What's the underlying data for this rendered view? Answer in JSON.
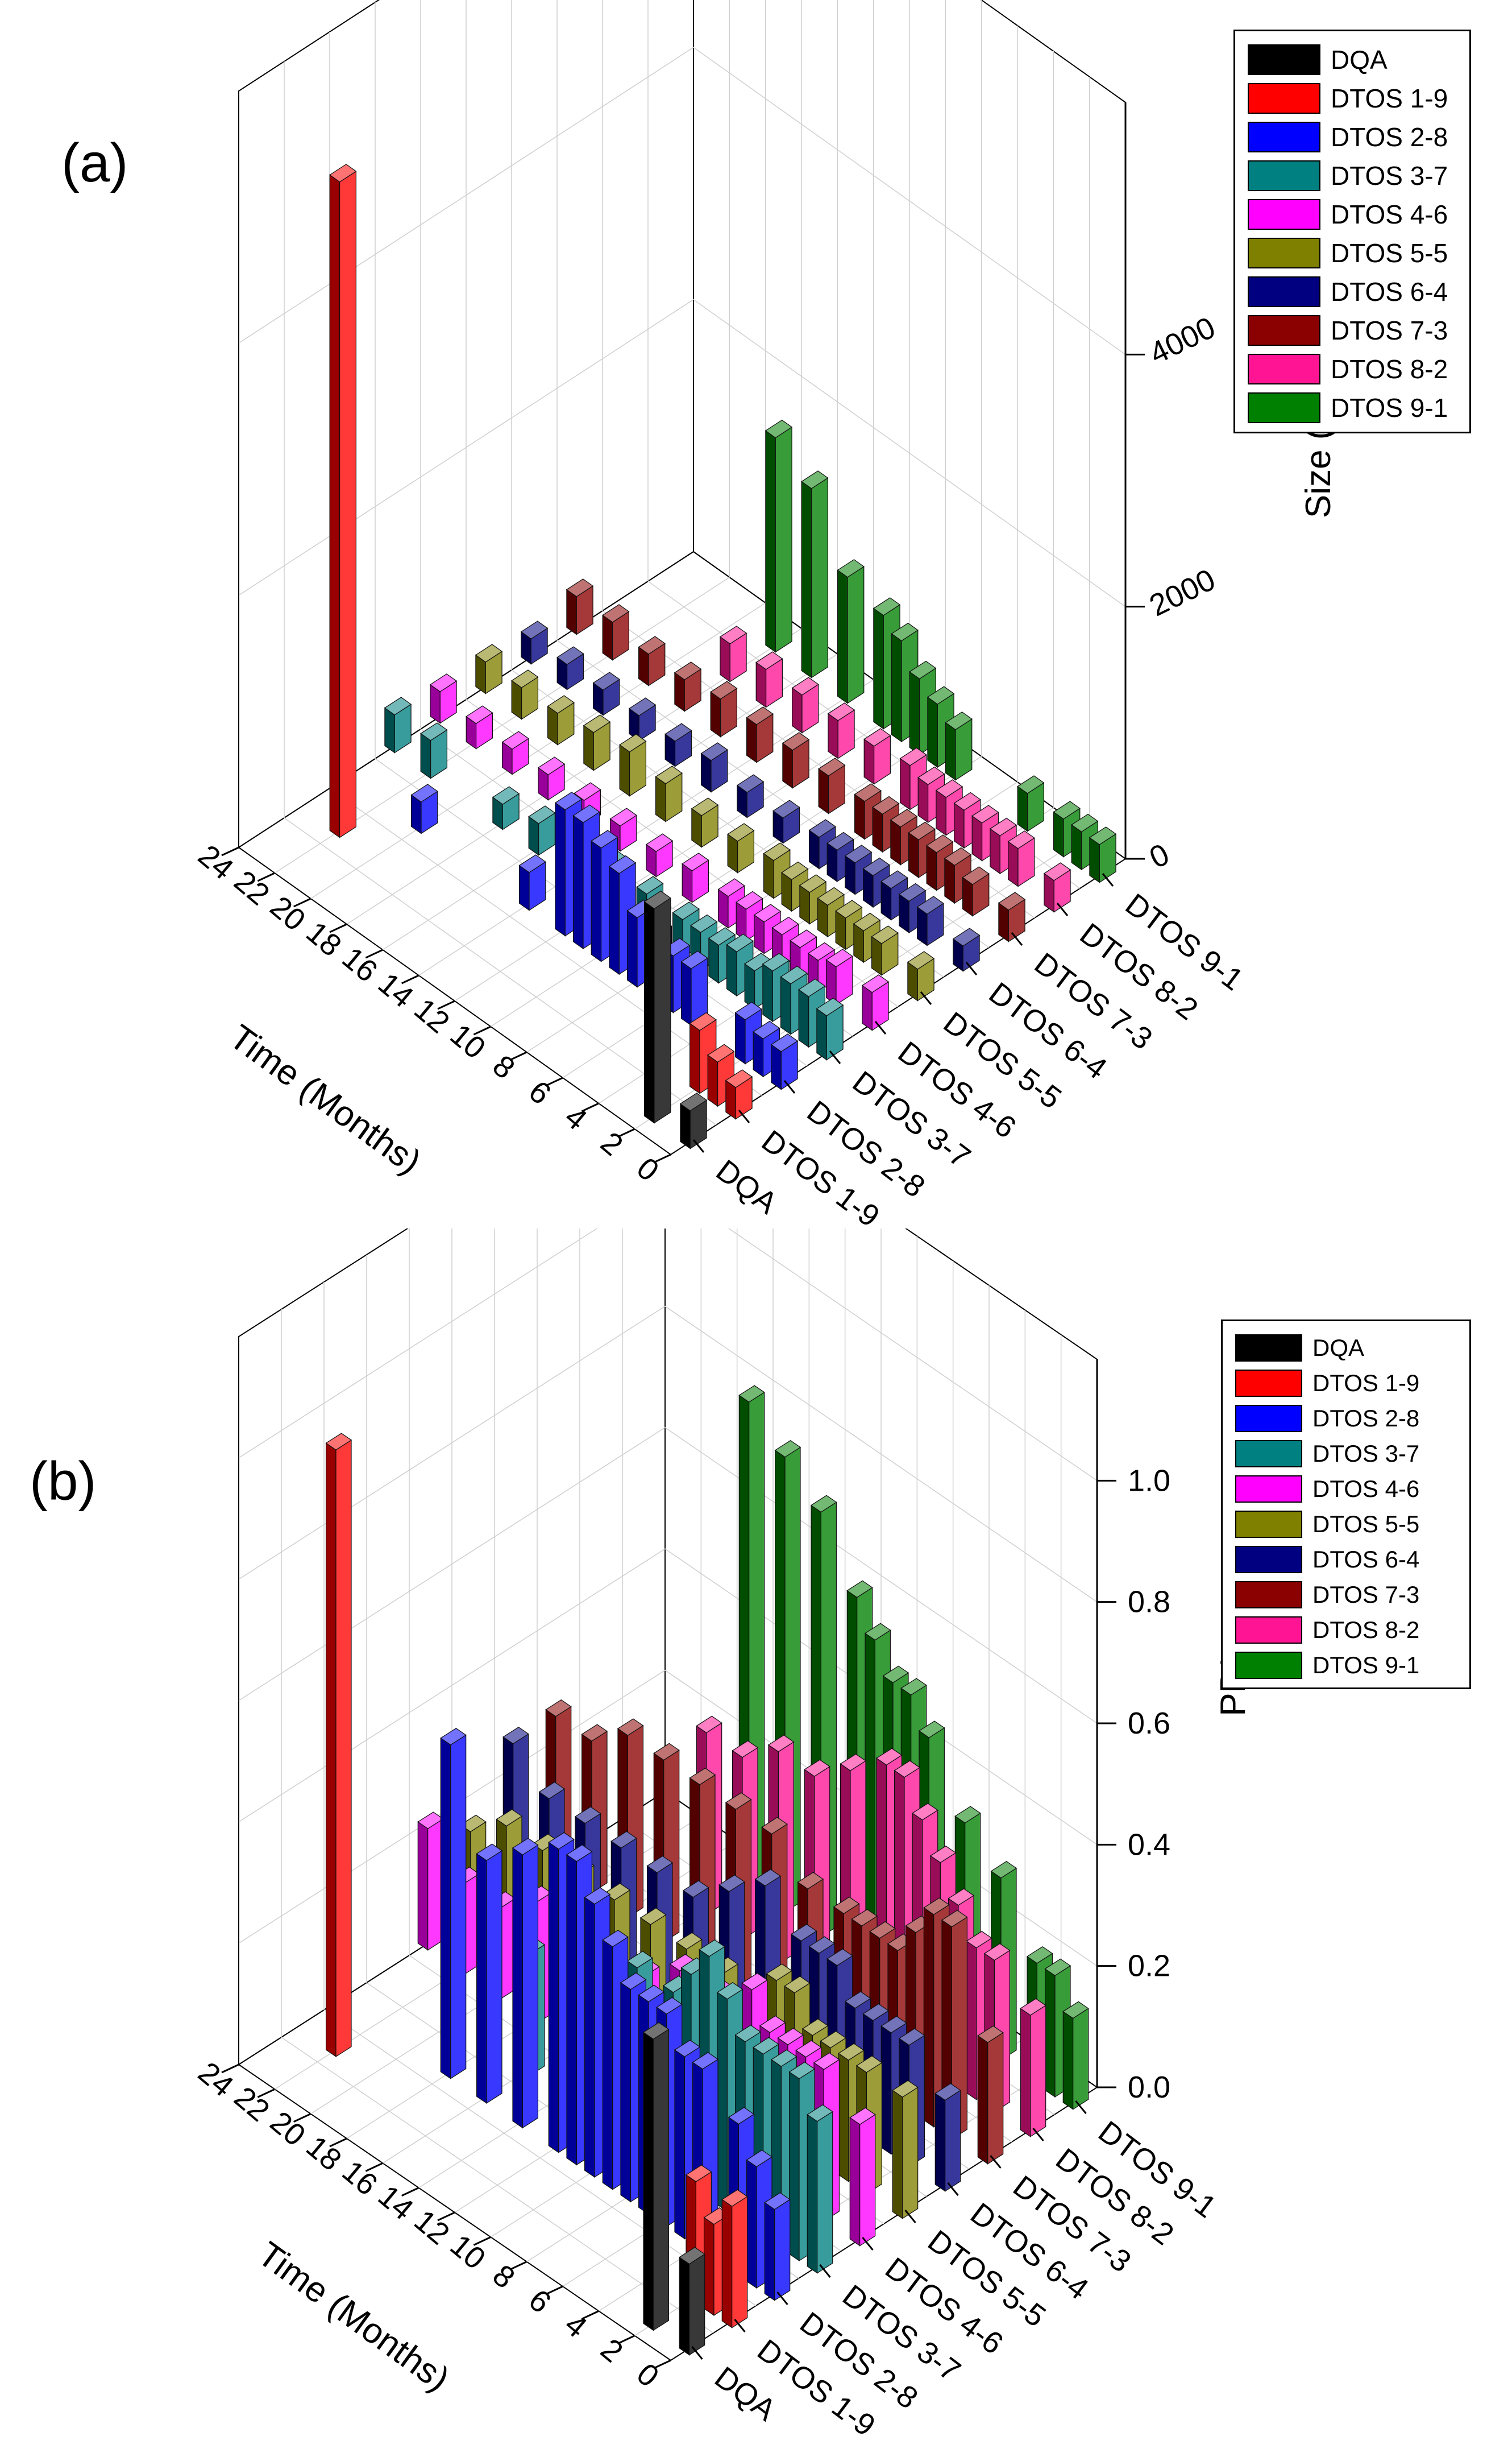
{
  "chart_data": [
    {
      "panel_label": "(a)",
      "type": "bar3d",
      "title": "",
      "xlabel": "",
      "ylabel": "Time (Months)",
      "zlabel": "Size (nm)",
      "categories": [
        "DQA",
        "DTOS 1-9",
        "DTOS 2-8",
        "DTOS 3-7",
        "DTOS 4-6",
        "DTOS 5-5",
        "DTOS 6-4",
        "DTOS 7-3",
        "DTOS 8-2",
        "DTOS 9-1"
      ],
      "time_ticks": [
        "0",
        "2",
        "4",
        "6",
        "8",
        "10",
        "12",
        "14",
        "16",
        "18",
        "20",
        "22",
        "24"
      ],
      "z_ticks": [
        "0",
        "2000",
        "4000"
      ],
      "zlim": [
        0,
        6000
      ],
      "series": [
        {
          "name": "DQA",
          "color": "#000000",
          "values": [
            [
              0,
              300
            ],
            [
              2,
              1700
            ]
          ]
        },
        {
          "name": "DTOS 1-9",
          "color": "#ff0000",
          "values": [
            [
              0,
              250
            ],
            [
              1,
              350
            ],
            [
              2,
              500
            ],
            [
              22,
              5200
            ]
          ]
        },
        {
          "name": "DTOS 2-8",
          "color": "#0000ff",
          "values": [
            [
              0,
              300
            ],
            [
              1,
              300
            ],
            [
              2,
              350
            ],
            [
              5,
              450
            ],
            [
              6,
              450
            ],
            [
              7,
              500
            ],
            [
              8,
              550
            ],
            [
              9,
              800
            ],
            [
              10,
              900
            ],
            [
              11,
              1000
            ],
            [
              12,
              1000
            ],
            [
              14,
              300
            ],
            [
              20,
              250
            ]
          ]
        },
        {
          "name": "DTOS 3-7",
          "color": "#008080",
          "values": [
            [
              0,
              350
            ],
            [
              1,
              400
            ],
            [
              2,
              400
            ],
            [
              3,
              400
            ],
            [
              4,
              300
            ],
            [
              5,
              350
            ],
            [
              6,
              300
            ],
            [
              7,
              300
            ],
            [
              8,
              300
            ],
            [
              10,
              300
            ],
            [
              12,
              300
            ],
            [
              14,
              250
            ],
            [
              16,
              250
            ],
            [
              18,
              200
            ],
            [
              22,
              300
            ],
            [
              24,
              300
            ]
          ]
        },
        {
          "name": "DTOS 4-6",
          "color": "#ff00ff",
          "values": [
            [
              0,
              300
            ],
            [
              2,
              300
            ],
            [
              3,
              250
            ],
            [
              4,
              250
            ],
            [
              5,
              250
            ],
            [
              6,
              250
            ],
            [
              7,
              250
            ],
            [
              8,
              250
            ],
            [
              10,
              250
            ],
            [
              12,
              200
            ],
            [
              14,
              200
            ],
            [
              16,
              200
            ],
            [
              18,
              200
            ],
            [
              20,
              200
            ],
            [
              22,
              200
            ],
            [
              24,
              250
            ]
          ]
        },
        {
          "name": "DTOS 5-5",
          "color": "#808000",
          "values": [
            [
              0,
              250
            ],
            [
              2,
              250
            ],
            [
              3,
              250
            ],
            [
              4,
              250
            ],
            [
              5,
              250
            ],
            [
              6,
              250
            ],
            [
              7,
              250
            ],
            [
              8,
              300
            ],
            [
              10,
              250
            ],
            [
              12,
              250
            ],
            [
              14,
              300
            ],
            [
              16,
              350
            ],
            [
              18,
              300
            ],
            [
              20,
              250
            ],
            [
              22,
              250
            ],
            [
              24,
              250
            ]
          ]
        },
        {
          "name": "DTOS 6-4",
          "color": "#000080",
          "values": [
            [
              0,
              200
            ],
            [
              2,
              250
            ],
            [
              3,
              250
            ],
            [
              4,
              250
            ],
            [
              5,
              250
            ],
            [
              6,
              250
            ],
            [
              7,
              250
            ],
            [
              8,
              250
            ],
            [
              10,
              200
            ],
            [
              12,
              200
            ],
            [
              14,
              250
            ],
            [
              16,
              200
            ],
            [
              18,
              200
            ],
            [
              20,
              200
            ],
            [
              22,
              200
            ],
            [
              24,
              200
            ]
          ]
        },
        {
          "name": "DTOS 7-3",
          "color": "#8b0000",
          "values": [
            [
              0,
              250
            ],
            [
              2,
              250
            ],
            [
              3,
              300
            ],
            [
              4,
              300
            ],
            [
              5,
              300
            ],
            [
              6,
              300
            ],
            [
              7,
              300
            ],
            [
              8,
              300
            ],
            [
              10,
              300
            ],
            [
              12,
              300
            ],
            [
              14,
              300
            ],
            [
              16,
              300
            ],
            [
              18,
              250
            ],
            [
              20,
              250
            ],
            [
              22,
              300
            ],
            [
              24,
              300
            ]
          ]
        },
        {
          "name": "DTOS 8-2",
          "color": "#ff1493",
          "values": [
            [
              0,
              250
            ],
            [
              2,
              300
            ],
            [
              3,
              300
            ],
            [
              4,
              300
            ],
            [
              5,
              300
            ],
            [
              6,
              300
            ],
            [
              7,
              300
            ],
            [
              8,
              350
            ],
            [
              10,
              300
            ],
            [
              12,
              300
            ],
            [
              14,
              300
            ],
            [
              16,
              300
            ],
            [
              18,
              300
            ]
          ]
        },
        {
          "name": "DTOS 9-1",
          "color": "#008000",
          "values": [
            [
              0,
              300
            ],
            [
              1,
              300
            ],
            [
              2,
              300
            ],
            [
              4,
              300
            ],
            [
              8,
              400
            ],
            [
              9,
              500
            ],
            [
              10,
              600
            ],
            [
              11,
              800
            ],
            [
              12,
              900
            ],
            [
              14,
              1000
            ],
            [
              16,
              1500
            ],
            [
              18,
              1700
            ]
          ]
        }
      ]
    },
    {
      "panel_label": "(b)",
      "type": "bar3d",
      "title": "",
      "xlabel": "",
      "ylabel": "Time (Months)",
      "zlabel": "PDI",
      "categories": [
        "DQA",
        "DTOS 1-9",
        "DTOS 2-8",
        "DTOS 3-7",
        "DTOS 4-6",
        "DTOS 5-5",
        "DTOS 6-4",
        "DTOS 7-3",
        "DTOS 8-2",
        "DTOS 9-1"
      ],
      "time_ticks": [
        "0",
        "2",
        "4",
        "6",
        "8",
        "10",
        "12",
        "14",
        "16",
        "18",
        "20",
        "22",
        "24"
      ],
      "z_ticks": [
        "0.0",
        "0.2",
        "0.4",
        "0.6",
        "0.8",
        "1.0"
      ],
      "zlim": [
        0,
        1.2
      ],
      "series": [
        {
          "name": "DQA",
          "color": "#000000",
          "values": [
            [
              0,
              0.15
            ],
            [
              2,
              0.48
            ]
          ]
        },
        {
          "name": "DTOS 1-9",
          "color": "#ff0000",
          "values": [
            [
              0,
              0.2
            ],
            [
              1,
              0.15
            ],
            [
              2,
              0.2
            ],
            [
              22,
              1.0
            ]
          ]
        },
        {
          "name": "DTOS 2-8",
          "color": "#0000ff",
          "values": [
            [
              0,
              0.15
            ],
            [
              1,
              0.2
            ],
            [
              2,
              0.25
            ],
            [
              4,
              0.3
            ],
            [
              5,
              0.3
            ],
            [
              6,
              0.35
            ],
            [
              7,
              0.35
            ],
            [
              8,
              0.35
            ],
            [
              9,
              0.4
            ],
            [
              10,
              0.45
            ],
            [
              11,
              0.5
            ],
            [
              12,
              0.5
            ],
            [
              14,
              0.45
            ],
            [
              16,
              0.4
            ],
            [
              18,
              0.55
            ]
          ]
        },
        {
          "name": "DTOS 3-7",
          "color": "#008080",
          "values": [
            [
              0,
              0.25
            ],
            [
              1,
              0.3
            ],
            [
              2,
              0.3
            ],
            [
              3,
              0.3
            ],
            [
              4,
              0.3
            ],
            [
              5,
              0.35
            ],
            [
              6,
              0.4
            ],
            [
              7,
              0.35
            ],
            [
              8,
              0.3
            ],
            [
              10,
              0.3
            ],
            [
              12,
              0.25
            ],
            [
              14,
              0.2
            ],
            [
              16,
              0.2
            ]
          ]
        },
        {
          "name": "DTOS 4-6",
          "color": "#ff00ff",
          "values": [
            [
              0,
              0.2
            ],
            [
              2,
              0.25
            ],
            [
              3,
              0.25
            ],
            [
              4,
              0.25
            ],
            [
              5,
              0.25
            ],
            [
              6,
              0.3
            ],
            [
              7,
              0.25
            ],
            [
              8,
              0.25
            ],
            [
              10,
              0.25
            ],
            [
              12,
              0.2
            ],
            [
              14,
              0.2
            ],
            [
              16,
              0.2
            ],
            [
              18,
              0.2
            ],
            [
              20,
              0.15
            ],
            [
              22,
              0.15
            ],
            [
              24,
              0.2
            ]
          ]
        },
        {
          "name": "DTOS 5-5",
          "color": "#808000",
          "values": [
            [
              0,
              0.2
            ],
            [
              2,
              0.2
            ],
            [
              3,
              0.2
            ],
            [
              4,
              0.2
            ],
            [
              5,
              0.2
            ],
            [
              6,
              0.25
            ],
            [
              7,
              0.25
            ],
            [
              8,
              0.2
            ],
            [
              10,
              0.2
            ],
            [
              12,
              0.2
            ],
            [
              14,
              0.2
            ],
            [
              16,
              0.2
            ],
            [
              18,
              0.2
            ],
            [
              20,
              0.2
            ],
            [
              22,
              0.2
            ],
            [
              24,
              0.15
            ]
          ]
        },
        {
          "name": "DTOS 6-4",
          "color": "#000080",
          "values": [
            [
              0,
              0.15
            ],
            [
              2,
              0.2
            ],
            [
              3,
              0.2
            ],
            [
              4,
              0.2
            ],
            [
              5,
              0.2
            ],
            [
              6,
              0.25
            ],
            [
              7,
              0.25
            ],
            [
              8,
              0.25
            ],
            [
              10,
              0.3
            ],
            [
              12,
              0.25
            ],
            [
              14,
              0.2
            ],
            [
              16,
              0.2
            ],
            [
              18,
              0.2
            ],
            [
              20,
              0.2
            ],
            [
              22,
              0.2
            ],
            [
              24,
              0.25
            ]
          ]
        },
        {
          "name": "DTOS 7-3",
          "color": "#8b0000",
          "values": [
            [
              0,
              0.2
            ],
            [
              2,
              0.35
            ],
            [
              3,
              0.35
            ],
            [
              4,
              0.3
            ],
            [
              5,
              0.25
            ],
            [
              6,
              0.25
            ],
            [
              7,
              0.25
            ],
            [
              8,
              0.25
            ],
            [
              10,
              0.25
            ],
            [
              12,
              0.3
            ],
            [
              14,
              0.3
            ],
            [
              16,
              0.3
            ],
            [
              18,
              0.3
            ],
            [
              20,
              0.3
            ],
            [
              22,
              0.25
            ],
            [
              24,
              0.25
            ]
          ]
        },
        {
          "name": "DTOS 8-2",
          "color": "#ff1493",
          "values": [
            [
              0,
              0.2
            ],
            [
              2,
              0.25
            ],
            [
              3,
              0.25
            ],
            [
              4,
              0.3
            ],
            [
              5,
              0.35
            ],
            [
              6,
              0.4
            ],
            [
              7,
              0.45
            ],
            [
              8,
              0.45
            ],
            [
              10,
              0.4
            ],
            [
              12,
              0.35
            ],
            [
              14,
              0.35
            ],
            [
              16,
              0.3
            ],
            [
              18,
              0.3
            ]
          ]
        },
        {
          "name": "DTOS 9-1",
          "color": "#008000",
          "values": [
            [
              0,
              0.15
            ],
            [
              1,
              0.2
            ],
            [
              2,
              0.2
            ],
            [
              4,
              0.3
            ],
            [
              6,
              0.35
            ],
            [
              8,
              0.45
            ],
            [
              9,
              0.5
            ],
            [
              10,
              0.5
            ],
            [
              11,
              0.55
            ],
            [
              12,
              0.6
            ],
            [
              14,
              0.7
            ],
            [
              16,
              0.75
            ],
            [
              18,
              0.8
            ]
          ]
        }
      ]
    }
  ]
}
